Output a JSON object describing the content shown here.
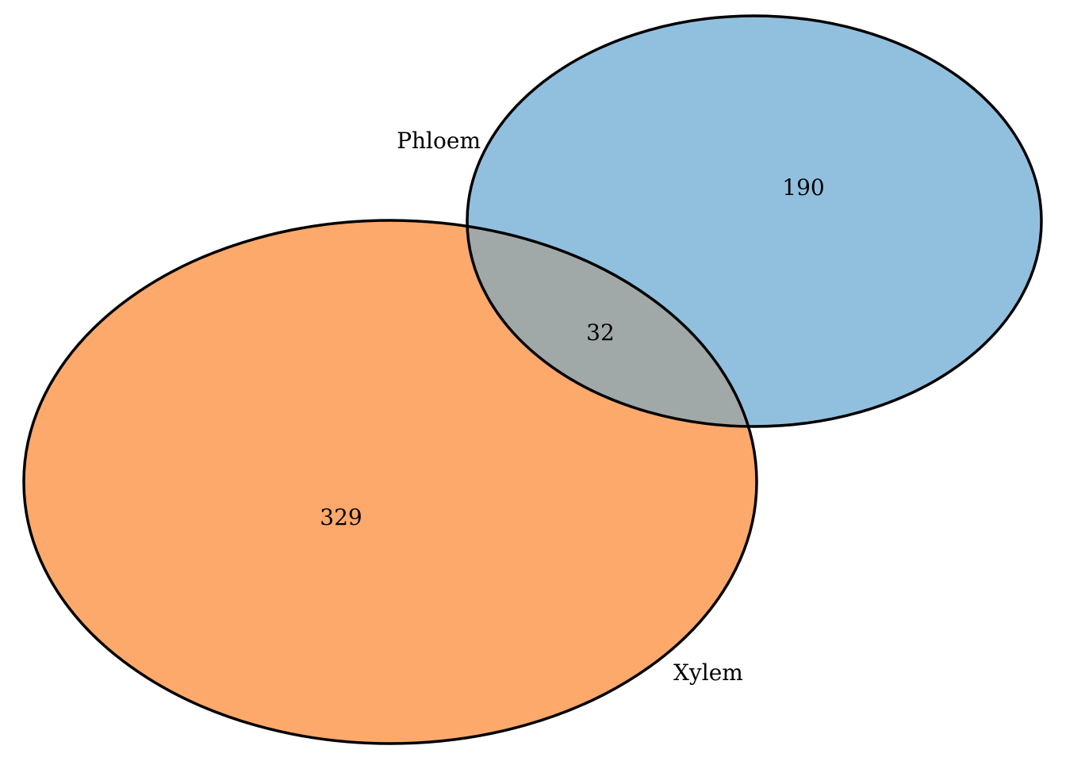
{
  "diagram": {
    "type": "venn",
    "sets": [
      {
        "name": "Phloem",
        "only_count": "190",
        "color": "#91c0df"
      },
      {
        "name": "Xylem",
        "only_count": "329",
        "color": "#fda96b"
      }
    ],
    "intersection": {
      "count": "32",
      "color": "#a1a9a8"
    }
  }
}
